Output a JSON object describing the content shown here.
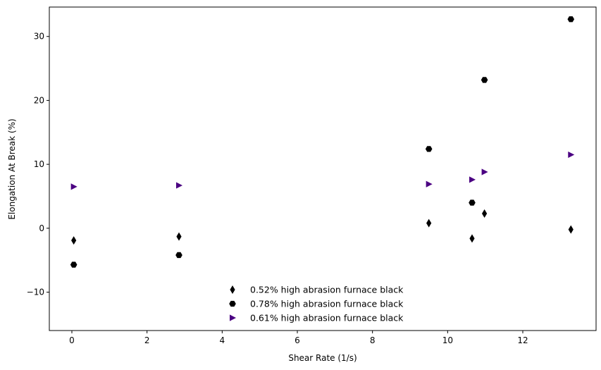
{
  "chart_data": {
    "type": "scatter",
    "title": "",
    "xlabel": "Shear Rate (1/s)",
    "ylabel": "Elongation At Break (%)",
    "xlim": [
      -0.6,
      13.95
    ],
    "ylim": [
      -16.0,
      34.6
    ],
    "xticks": [
      0,
      2,
      4,
      6,
      8,
      10,
      12
    ],
    "yticks": [
      -10,
      0,
      10,
      20,
      30
    ],
    "grid": false,
    "legend_position": "lower-center",
    "series": [
      {
        "name": "0.52% high abrasion furnace black",
        "marker": "thin-diamond",
        "color": "#000000",
        "x": [
          0.05,
          2.85,
          9.5,
          10.65,
          10.98,
          13.28
        ],
        "y": [
          -1.9,
          -1.3,
          0.8,
          -1.6,
          2.3,
          -0.2
        ]
      },
      {
        "name": "0.78% high abrasion furnace black",
        "marker": "hexagon",
        "color": "#000000",
        "x": [
          0.05,
          2.85,
          9.5,
          10.65,
          10.98,
          13.28
        ],
        "y": [
          -5.7,
          -4.2,
          12.4,
          4.0,
          23.2,
          32.7
        ]
      },
      {
        "name": "0.61% high abrasion furnace black",
        "marker": "triangle-right",
        "color": "#4B0082",
        "x": [
          0.05,
          2.85,
          9.5,
          10.65,
          10.98,
          13.28
        ],
        "y": [
          6.5,
          6.7,
          6.9,
          7.6,
          8.8,
          11.5
        ]
      }
    ]
  }
}
